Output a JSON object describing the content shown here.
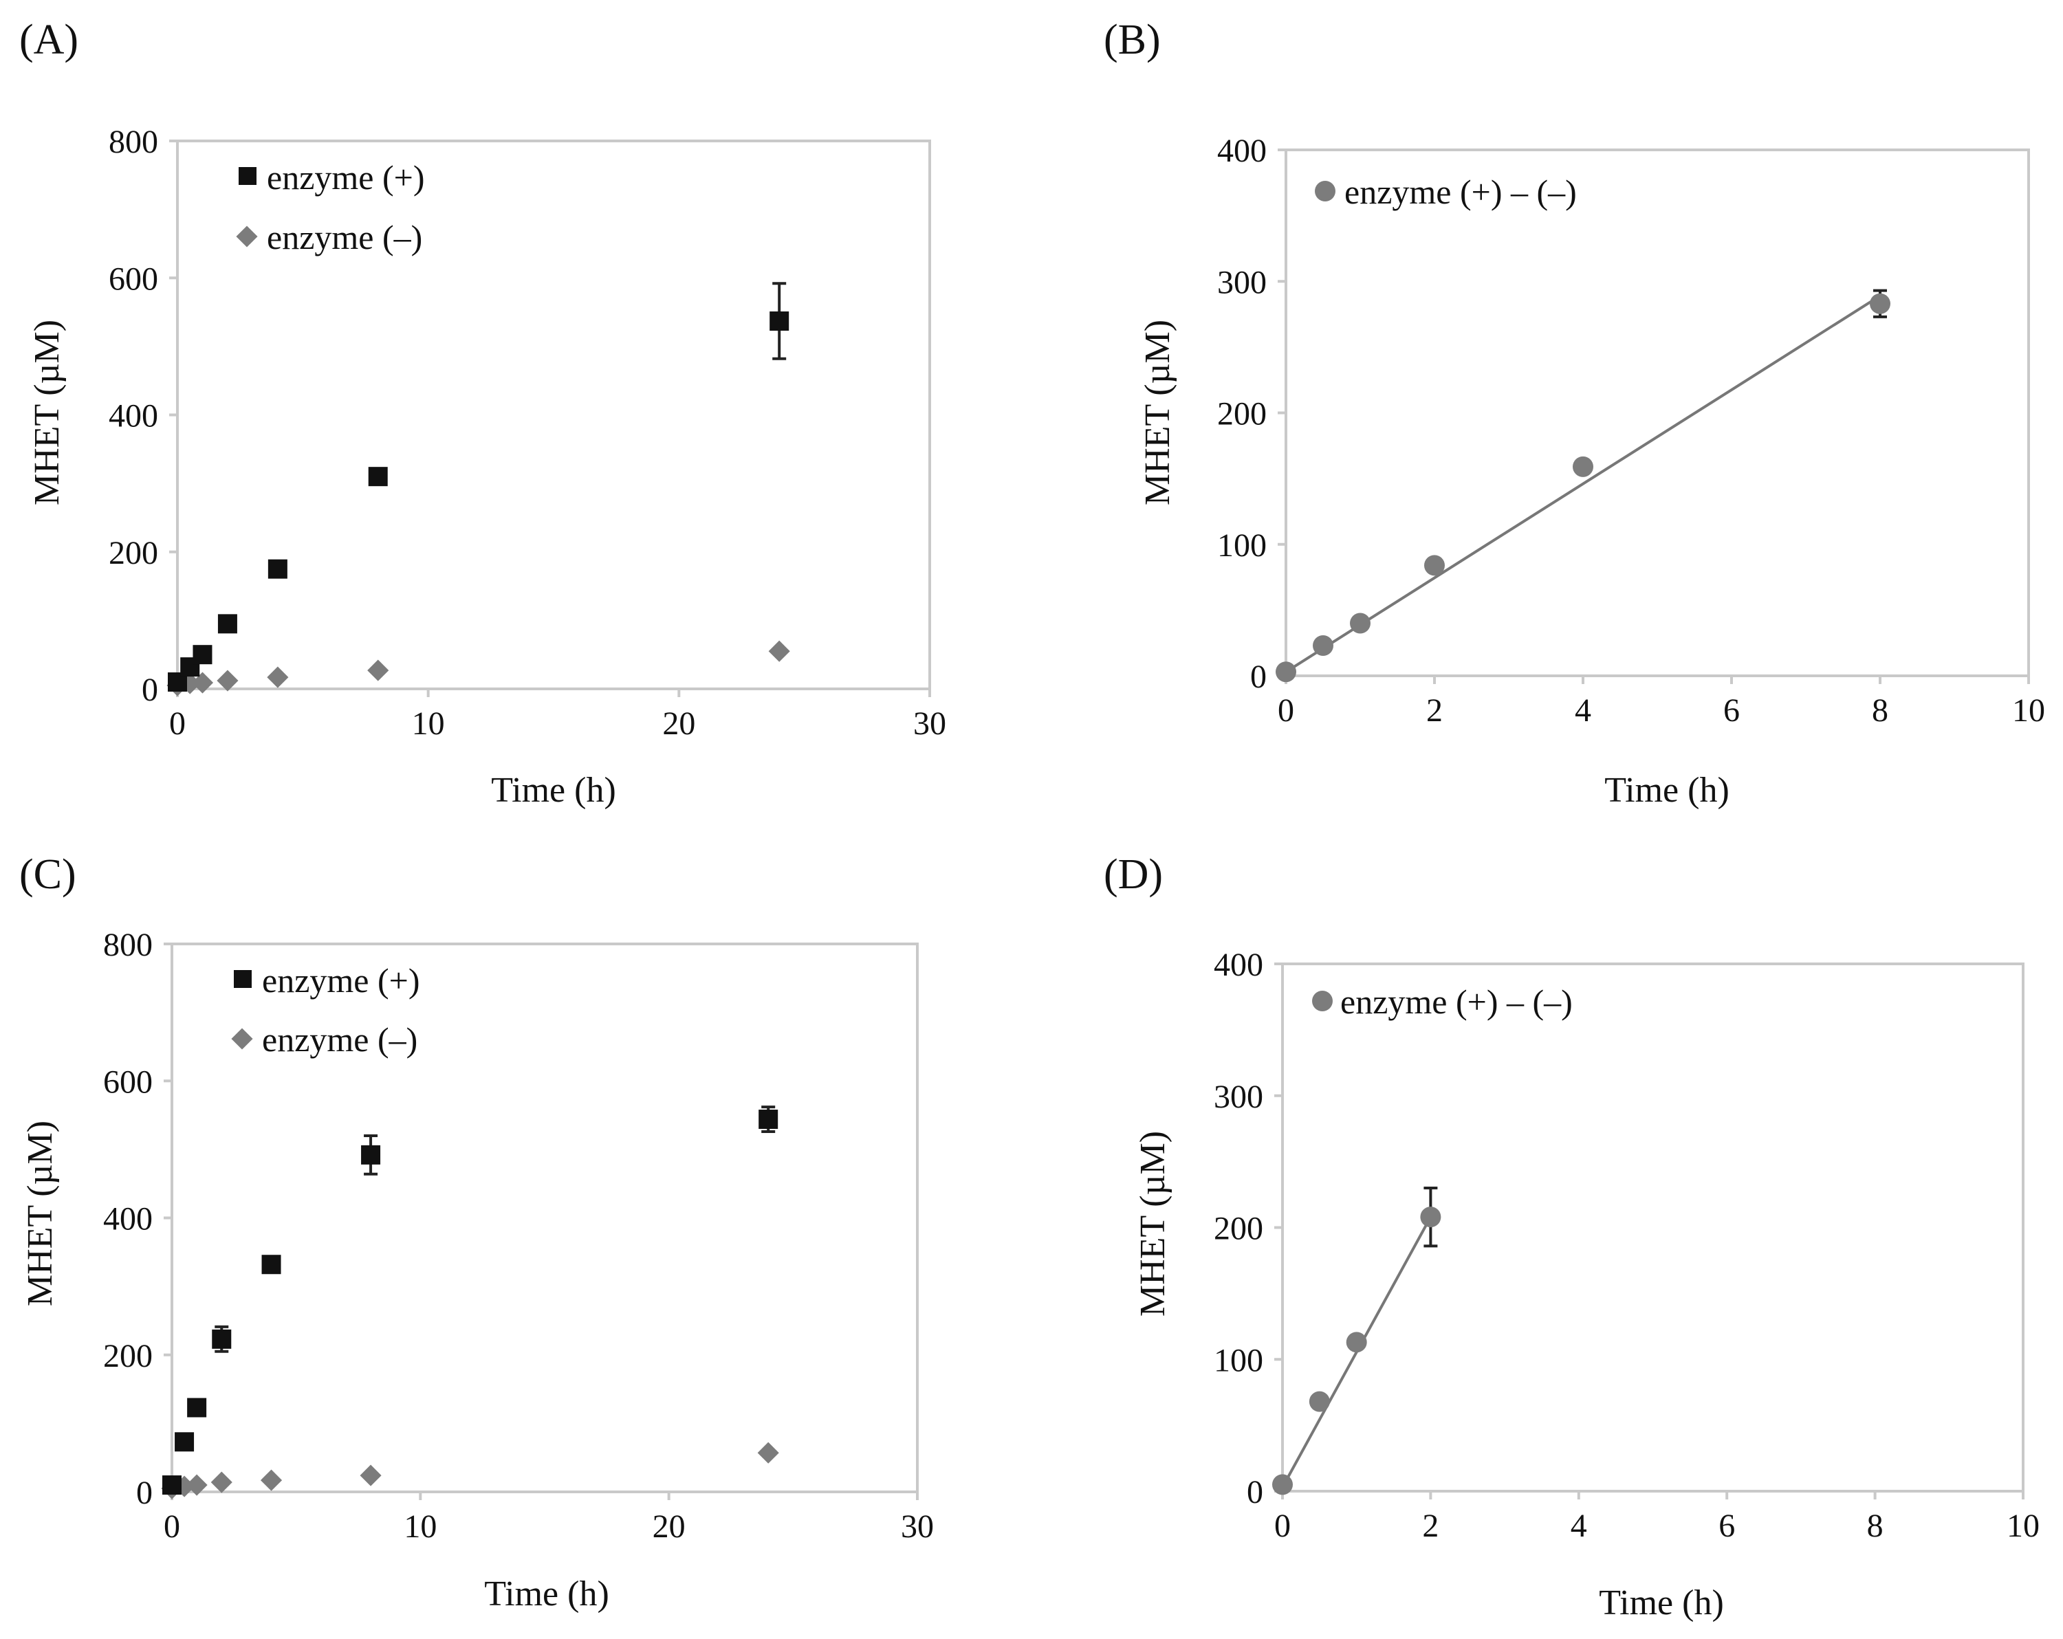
{
  "colors": {
    "black": "#111111",
    "gray": "#7c7c7c",
    "line": "#777777"
  },
  "chart_data": [
    {
      "label": "(A)",
      "type": "scatter",
      "xlabel": "Time (h)",
      "ylabel": "MHET (µM)",
      "xlim": [
        0,
        30
      ],
      "ylim": [
        0,
        800
      ],
      "xticks": [
        0,
        10,
        20,
        30
      ],
      "yticks": [
        0,
        200,
        400,
        600,
        800
      ],
      "legend_position": "top-left",
      "series": [
        {
          "name": "enzyme (+)",
          "marker": "square",
          "color": "#111111",
          "x": [
            0,
            0.5,
            1,
            2,
            4,
            8,
            24
          ],
          "y": [
            10,
            32,
            50,
            95,
            175,
            310,
            537
          ],
          "err": [
            0,
            0,
            0,
            0,
            0,
            0,
            55
          ]
        },
        {
          "name": "enzyme (–)",
          "marker": "diamond",
          "color": "#7c7c7c",
          "x": [
            0,
            0.5,
            1,
            2,
            4,
            8,
            24
          ],
          "y": [
            5,
            8,
            9,
            12,
            17,
            27,
            55
          ],
          "err": [
            0,
            0,
            0,
            0,
            0,
            0,
            0
          ]
        }
      ]
    },
    {
      "label": "(B)",
      "type": "scatter",
      "xlabel": "Time (h)",
      "ylabel": "MHET (µM)",
      "xlim": [
        0,
        10
      ],
      "ylim": [
        0,
        400
      ],
      "xticks": [
        0,
        2,
        4,
        6,
        8,
        10
      ],
      "yticks": [
        0,
        100,
        200,
        300,
        400
      ],
      "legend_position": "top-left",
      "series": [
        {
          "name": "enzyme (+) – (–)",
          "marker": "circle",
          "color": "#7c7c7c",
          "x": [
            0,
            0.5,
            1,
            2,
            4,
            8
          ],
          "y": [
            3,
            23,
            40,
            84,
            159,
            283
          ],
          "err": [
            0,
            0,
            0,
            0,
            0,
            10
          ]
        }
      ],
      "fit": {
        "x": [
          0,
          8
        ],
        "y": [
          3,
          289
        ]
      }
    },
    {
      "label": "(C)",
      "type": "scatter",
      "xlabel": "Time (h)",
      "ylabel": "MHET (µM)",
      "xlim": [
        0,
        30
      ],
      "ylim": [
        0,
        800
      ],
      "xticks": [
        0,
        10,
        20,
        30
      ],
      "yticks": [
        0,
        200,
        400,
        600,
        800
      ],
      "legend_position": "top-left",
      "series": [
        {
          "name": "enzyme (+)",
          "marker": "square",
          "color": "#111111",
          "x": [
            0,
            0.5,
            1,
            2,
            4,
            8,
            24
          ],
          "y": [
            10,
            73,
            123,
            223,
            332,
            492,
            544
          ],
          "err": [
            0,
            0,
            0,
            18,
            0,
            28,
            18
          ]
        },
        {
          "name": "enzyme (–)",
          "marker": "diamond",
          "color": "#7c7c7c",
          "x": [
            0,
            0.5,
            1,
            2,
            4,
            8,
            24
          ],
          "y": [
            5,
            8,
            10,
            14,
            17,
            24,
            57
          ],
          "err": [
            0,
            0,
            0,
            0,
            0,
            0,
            0
          ]
        }
      ]
    },
    {
      "label": "(D)",
      "type": "scatter",
      "xlabel": "Time (h)",
      "ylabel": "MHET (µM)",
      "xlim": [
        0,
        10
      ],
      "ylim": [
        0,
        400
      ],
      "xticks": [
        0,
        2,
        4,
        6,
        8,
        10
      ],
      "yticks": [
        0,
        100,
        200,
        300,
        400
      ],
      "legend_position": "top-left",
      "series": [
        {
          "name": "enzyme (+) – (–)",
          "marker": "circle",
          "color": "#7c7c7c",
          "x": [
            0,
            0.5,
            1,
            2
          ],
          "y": [
            5,
            68,
            113,
            208
          ],
          "err": [
            0,
            0,
            0,
            22
          ]
        }
      ],
      "fit": {
        "x": [
          0,
          2
        ],
        "y": [
          3,
          208
        ]
      }
    }
  ]
}
